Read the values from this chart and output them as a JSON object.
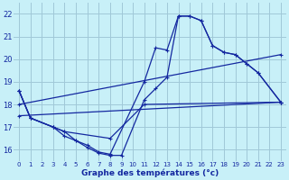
{
  "bg_color": "#c8f0f8",
  "grid_color": "#a0c8d8",
  "line_color": "#1428a0",
  "xlabel": "Graphe des températures (°c)",
  "xlim": [
    -0.5,
    23.5
  ],
  "ylim": [
    15.5,
    22.5
  ],
  "yticks": [
    16,
    17,
    18,
    19,
    20,
    21,
    22
  ],
  "xticks": [
    0,
    1,
    2,
    3,
    4,
    5,
    6,
    7,
    8,
    9,
    10,
    11,
    12,
    13,
    14,
    15,
    16,
    17,
    18,
    19,
    20,
    21,
    22,
    23
  ],
  "line1_x": [
    0,
    1,
    3,
    4,
    5,
    6,
    7,
    8,
    11,
    12,
    13,
    14,
    15,
    16,
    17,
    18,
    19,
    20,
    21,
    23
  ],
  "line1_y": [
    18.6,
    17.4,
    17.0,
    16.8,
    16.4,
    16.2,
    15.9,
    15.8,
    19.0,
    20.5,
    20.4,
    21.9,
    21.9,
    21.7,
    20.6,
    20.3,
    20.2,
    19.8,
    19.4,
    18.1
  ],
  "line2_x": [
    0,
    1,
    3,
    4,
    5,
    6,
    7,
    8,
    9,
    11,
    12,
    13,
    14,
    15,
    16,
    17,
    18,
    19,
    20,
    21,
    23
  ],
  "line2_y": [
    18.6,
    17.4,
    17.0,
    16.6,
    16.4,
    16.1,
    15.85,
    15.75,
    15.75,
    18.2,
    18.7,
    19.2,
    21.9,
    21.9,
    21.7,
    20.6,
    20.3,
    20.2,
    19.8,
    19.4,
    18.1
  ],
  "line3_x": [
    0,
    23
  ],
  "line3_y": [
    18.0,
    20.2
  ],
  "line4_x": [
    0,
    23
  ],
  "line4_y": [
    17.5,
    18.1
  ],
  "line5_x": [
    0,
    1,
    3,
    4,
    8,
    11,
    23
  ],
  "line5_y": [
    18.6,
    17.4,
    17.0,
    16.8,
    16.5,
    18.0,
    18.1
  ]
}
